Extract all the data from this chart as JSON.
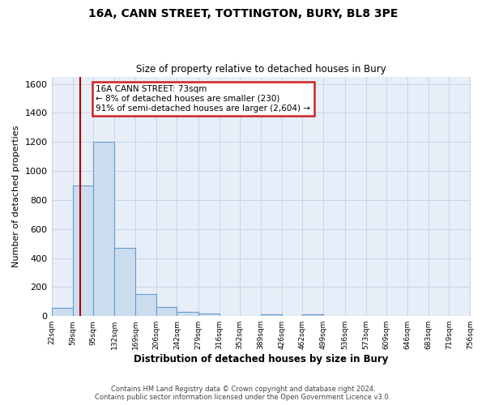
{
  "title": "16A, CANN STREET, TOTTINGTON, BURY, BL8 3PE",
  "subtitle": "Size of property relative to detached houses in Bury",
  "xlabel": "Distribution of detached houses by size in Bury",
  "ylabel": "Number of detached properties",
  "bin_edges": [
    22,
    59,
    95,
    132,
    169,
    206,
    242,
    279,
    316,
    352,
    389,
    426,
    462,
    499,
    536,
    573,
    609,
    646,
    683,
    719,
    756
  ],
  "bin_labels": [
    "22sqm",
    "59sqm",
    "95sqm",
    "132sqm",
    "169sqm",
    "206sqm",
    "242sqm",
    "279sqm",
    "316sqm",
    "352sqm",
    "389sqm",
    "426sqm",
    "462sqm",
    "499sqm",
    "536sqm",
    "573sqm",
    "609sqm",
    "646sqm",
    "683sqm",
    "719sqm",
    "756sqm"
  ],
  "counts": [
    55,
    900,
    1200,
    470,
    150,
    60,
    30,
    20,
    0,
    0,
    15,
    0,
    15,
    0,
    0,
    0,
    0,
    0,
    0,
    0
  ],
  "bar_color": "#ccddf0",
  "bar_edge_color": "#6699cc",
  "property_line_x": 73,
  "property_line_color": "#aa0000",
  "annotation_text": "16A CANN STREET: 73sqm\n← 8% of detached houses are smaller (230)\n91% of semi-detached houses are larger (2,604) →",
  "annotation_box_facecolor": "#ffffff",
  "annotation_box_edgecolor": "#cc2222",
  "ylim": [
    0,
    1650
  ],
  "yticks": [
    0,
    200,
    400,
    600,
    800,
    1000,
    1200,
    1400,
    1600
  ],
  "plot_bg_color": "#e8eef8",
  "fig_bg_color": "#ffffff",
  "grid_color": "#c8d4e8",
  "footer_line1": "Contains HM Land Registry data © Crown copyright and database right 2024.",
  "footer_line2": "Contains public sector information licensed under the Open Government Licence v3.0."
}
